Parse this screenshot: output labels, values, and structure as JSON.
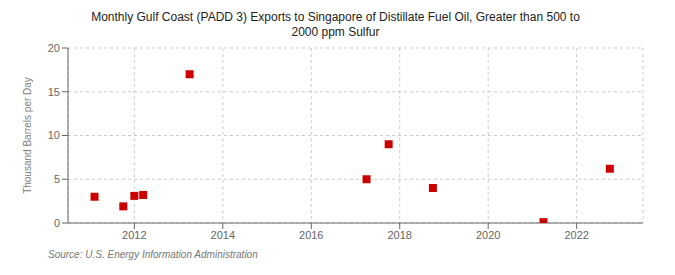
{
  "chart_data": {
    "type": "scatter",
    "title": "Monthly Gulf Coast (PADD 3) Exports to Singapore of Distillate Fuel Oil, Greater than 500 to\n2000 ppm Sulfur",
    "ylabel": "Thousand Barrels per Day",
    "annotations": [
      "Source: U.S. Energy Information Administration"
    ],
    "x": [
      2011.1,
      2011.75,
      2012.0,
      2012.2,
      2013.25,
      2017.25,
      2017.75,
      2018.75,
      2021.25,
      2022.75
    ],
    "values": [
      3.0,
      1.9,
      3.1,
      3.2,
      17.0,
      5.0,
      9.0,
      4.0,
      0.1,
      6.2
    ],
    "color": "#cc0000",
    "marker": "square",
    "xlim": [
      2010.5,
      2023.5
    ],
    "ylim": [
      0,
      20
    ],
    "xticks": [
      2012,
      2014,
      2016,
      2018,
      2020,
      2022
    ],
    "yticks": [
      0,
      5,
      10,
      15,
      20
    ],
    "grid": true
  }
}
